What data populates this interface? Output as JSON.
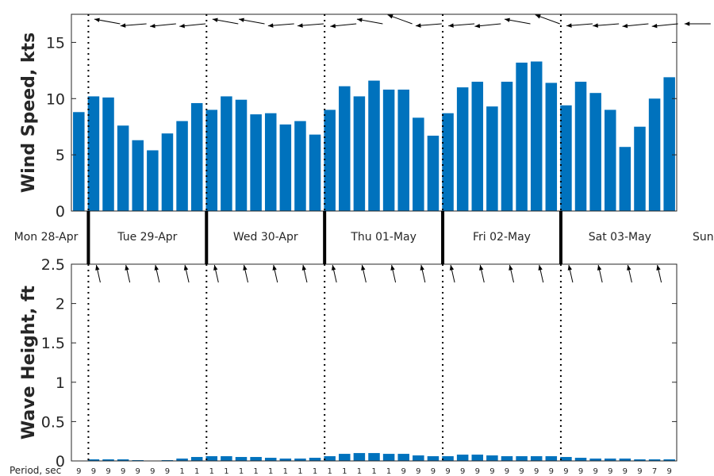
{
  "chart_data": [
    {
      "type": "bar",
      "ylabel": "Wind Speed, kts",
      "ylim": [
        0,
        17.5
      ],
      "yticks": [
        "0",
        "5",
        "10",
        "15"
      ],
      "bar_color": "#0072BD",
      "values": [
        8.8,
        10.2,
        10.1,
        7.6,
        6.3,
        5.4,
        6.9,
        8.0,
        9.6,
        9.0,
        10.2,
        9.9,
        8.6,
        8.7,
        7.7,
        8.0,
        6.8,
        9.0,
        11.1,
        10.2,
        11.6,
        10.8,
        10.8,
        8.3,
        6.7,
        8.7,
        11.0,
        11.5,
        9.3,
        11.5,
        13.2,
        13.3,
        11.4,
        9.4,
        11.5,
        10.5,
        9.0,
        5.7,
        7.5,
        10.0,
        11.9
      ],
      "wind_direction_arrows": "pointing from the east, roughly every 6 hours"
    },
    {
      "type": "bar",
      "ylabel": "Wave Height, ft",
      "ylim": [
        0,
        2.5
      ],
      "yticks": [
        "0",
        "0.5",
        "1",
        "1.5",
        "2",
        "2.5"
      ],
      "bar_color": "#0072BD",
      "values": [
        0.0,
        0.02,
        0.02,
        0.02,
        0.01,
        0.0,
        0.01,
        0.03,
        0.05,
        0.06,
        0.06,
        0.05,
        0.05,
        0.04,
        0.03,
        0.03,
        0.04,
        0.06,
        0.09,
        0.1,
        0.1,
        0.09,
        0.09,
        0.07,
        0.06,
        0.06,
        0.08,
        0.08,
        0.07,
        0.06,
        0.06,
        0.06,
        0.06,
        0.05,
        0.04,
        0.03,
        0.03,
        0.03,
        0.02,
        0.02,
        0.02
      ],
      "wave_direction_arrows": "pointing to the north-northwest, roughly every 6 hours",
      "period_label": "Period, sec",
      "periods": [
        "9",
        "9",
        "9",
        "9",
        "9",
        "9",
        "9",
        "1",
        "1",
        "1",
        "1",
        "1",
        "1",
        "1",
        "1",
        "1",
        "1",
        "1",
        "1",
        "1",
        "1",
        "1",
        "9",
        "9",
        "9",
        "9",
        "9",
        "9",
        "9",
        "9",
        "9",
        "9",
        "9",
        "9",
        "9",
        "9",
        "9",
        "9",
        "9",
        "7",
        "9"
      ]
    }
  ],
  "days": [
    "Mon 28-Apr",
    "Tue 29-Apr",
    "Wed 30-Apr",
    "Thu 01-May",
    "Fri 02-May",
    "Sat 03-May",
    "Sun"
  ],
  "colors": {
    "bar": "#0072BD",
    "axis": "#262626"
  }
}
